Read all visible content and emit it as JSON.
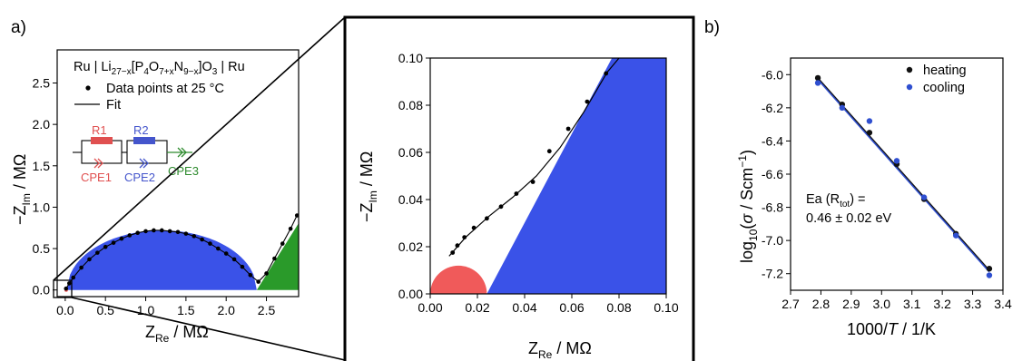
{
  "panel_labels": {
    "a": "a)",
    "b": "b)"
  },
  "chart_data": [
    {
      "id": "main",
      "type": "scatter",
      "legend_position": "top",
      "legend": {
        "cell_prefix": "Ru | Li",
        "sub1": "27−x",
        "mid1": "[P",
        "sub2": "4",
        "mid2": "O",
        "sub3": "7+x",
        "mid3": "N",
        "sub4": "9−x",
        "mid4": "]O",
        "sub5": "3",
        "cell_suffix": " | Ru",
        "points_label": "Data points at 25 °C",
        "fit_label": "Fit"
      },
      "circuit": {
        "r1": "R1",
        "r2": "R2",
        "cpe1": "CPE1",
        "cpe2": "CPE2",
        "cpe3": "CPE3",
        "colors": {
          "r1": "#e05050",
          "r2": "#4455cc",
          "cpe3": "#2e8b2e"
        }
      },
      "xlabel": {
        "main": "Z",
        "sub": "Re",
        "unit": " / MΩ"
      },
      "ylabel": {
        "main": "−Z",
        "sub": "Im",
        "unit": " / MΩ"
      },
      "xlim": [
        -0.1,
        2.9
      ],
      "ylim": [
        -0.08,
        2.9
      ],
      "x_ticks": [
        "0.0",
        "0.5",
        "1.0",
        "1.5",
        "2.0",
        "2.5"
      ],
      "x_tick_values": [
        0,
        0.5,
        1.0,
        1.5,
        2.0,
        2.5
      ],
      "y_ticks": [
        "0.0",
        "0.5",
        "1.0",
        "1.5",
        "2.0",
        "2.5"
      ],
      "y_tick_values": [
        0,
        0.5,
        1.0,
        1.5,
        2.0,
        2.5
      ],
      "regions": [
        {
          "name": "R1 arc",
          "color": "#f05a5a",
          "center": 0.012,
          "radius": 0.012
        },
        {
          "name": "R2 arc",
          "color": "#3a52e8",
          "x_start": 0.02,
          "x_end": 2.38,
          "peak": 0.72
        },
        {
          "name": "CPE3 spur",
          "color": "#2a9a2a",
          "x_start": 2.38,
          "x_end": 2.9,
          "slope": 1.55
        }
      ],
      "points": [
        {
          "x": 0.01,
          "y": 0.017
        },
        {
          "x": 0.05,
          "y": 0.08
        },
        {
          "x": 0.1,
          "y": 0.15
        },
        {
          "x": 0.2,
          "y": 0.27
        },
        {
          "x": 0.3,
          "y": 0.37
        },
        {
          "x": 0.4,
          "y": 0.45
        },
        {
          "x": 0.5,
          "y": 0.52
        },
        {
          "x": 0.6,
          "y": 0.57
        },
        {
          "x": 0.7,
          "y": 0.62
        },
        {
          "x": 0.8,
          "y": 0.66
        },
        {
          "x": 0.9,
          "y": 0.69
        },
        {
          "x": 1.0,
          "y": 0.71
        },
        {
          "x": 1.1,
          "y": 0.72
        },
        {
          "x": 1.2,
          "y": 0.72
        },
        {
          "x": 1.3,
          "y": 0.71
        },
        {
          "x": 1.4,
          "y": 0.7
        },
        {
          "x": 1.5,
          "y": 0.68
        },
        {
          "x": 1.6,
          "y": 0.65
        },
        {
          "x": 1.7,
          "y": 0.61
        },
        {
          "x": 1.8,
          "y": 0.56
        },
        {
          "x": 1.9,
          "y": 0.5
        },
        {
          "x": 2.0,
          "y": 0.44
        },
        {
          "x": 2.1,
          "y": 0.37
        },
        {
          "x": 2.2,
          "y": 0.28
        },
        {
          "x": 2.3,
          "y": 0.18
        },
        {
          "x": 2.4,
          "y": 0.1
        },
        {
          "x": 2.5,
          "y": 0.2
        },
        {
          "x": 2.6,
          "y": 0.38
        },
        {
          "x": 2.7,
          "y": 0.56
        },
        {
          "x": 2.8,
          "y": 0.74
        },
        {
          "x": 2.88,
          "y": 0.9
        }
      ],
      "fit_description": "Fit"
    },
    {
      "id": "inset",
      "type": "scatter",
      "xlabel": {
        "main": "Z",
        "sub": "Re",
        "unit": " / MΩ"
      },
      "ylabel": {
        "main": "−Z",
        "sub": "Im",
        "unit": " / MΩ"
      },
      "xlim": [
        0,
        0.1
      ],
      "ylim": [
        0,
        0.1
      ],
      "x_ticks": [
        "0.00",
        "0.02",
        "0.04",
        "0.06",
        "0.08",
        "0.10"
      ],
      "x_tick_values": [
        0,
        0.02,
        0.04,
        0.06,
        0.08,
        0.1
      ],
      "y_ticks": [
        "0.00",
        "0.02",
        "0.04",
        "0.06",
        "0.08",
        "0.10"
      ],
      "y_tick_values": [
        0,
        0.02,
        0.04,
        0.06,
        0.08,
        0.1
      ],
      "red_arc": {
        "center": 0.012,
        "radius": 0.012,
        "color": "#f05a5a"
      },
      "blue_region": {
        "color": "#3a52e8",
        "bottom_x": 0.024,
        "top_x": 0.077
      },
      "points": [
        {
          "x": 0.0095,
          "y": 0.0175
        },
        {
          "x": 0.0115,
          "y": 0.0205
        },
        {
          "x": 0.0145,
          "y": 0.024
        },
        {
          "x": 0.0185,
          "y": 0.028
        },
        {
          "x": 0.024,
          "y": 0.032
        },
        {
          "x": 0.03,
          "y": 0.037
        },
        {
          "x": 0.0365,
          "y": 0.0425
        },
        {
          "x": 0.0435,
          "y": 0.0475
        },
        {
          "x": 0.0505,
          "y": 0.0605
        },
        {
          "x": 0.0585,
          "y": 0.07
        },
        {
          "x": 0.0665,
          "y": 0.0815
        },
        {
          "x": 0.0745,
          "y": 0.0935
        }
      ],
      "fit": [
        {
          "x": 0.008,
          "y": 0.016
        },
        {
          "x": 0.015,
          "y": 0.024
        },
        {
          "x": 0.025,
          "y": 0.033
        },
        {
          "x": 0.035,
          "y": 0.041
        },
        {
          "x": 0.045,
          "y": 0.05
        },
        {
          "x": 0.055,
          "y": 0.062
        },
        {
          "x": 0.065,
          "y": 0.077
        },
        {
          "x": 0.075,
          "y": 0.094
        },
        {
          "x": 0.08,
          "y": 0.1
        }
      ]
    },
    {
      "id": "arrhenius",
      "type": "scatter",
      "xlabel": {
        "pre": "1000/",
        "italic": "T",
        "post": " / 1/K"
      },
      "ylabel": {
        "pre": "log",
        "sub": "10",
        "open": "(",
        "italic": "σ",
        "post": " / Scm",
        "sup": "−1",
        "close": ")"
      },
      "xlim": [
        2.7,
        3.4
      ],
      "ylim": [
        -7.3,
        -5.9
      ],
      "x_ticks": [
        "2.7",
        "2.8",
        "2.9",
        "3.0",
        "3.1",
        "3.2",
        "3.3",
        "3.4"
      ],
      "x_tick_values": [
        2.7,
        2.8,
        2.9,
        3.0,
        3.1,
        3.2,
        3.3,
        3.4
      ],
      "y_ticks": [
        "-6.0",
        "-6.2",
        "-6.4",
        "-6.6",
        "-6.8",
        "-7.0",
        "-7.2"
      ],
      "y_tick_values": [
        -6.0,
        -6.2,
        -6.4,
        -6.6,
        -6.8,
        -7.0,
        -7.2
      ],
      "annotation": {
        "line1": "Ea (R",
        "sub": "tot",
        "line1_end": ") =",
        "line2": "0.46 ± 0.02 eV"
      },
      "series": [
        {
          "name": "heating",
          "color": "#111111",
          "x": [
            2.79,
            2.87,
            2.96,
            3.05,
            3.14,
            3.245,
            3.355
          ],
          "y": [
            -6.02,
            -6.18,
            -6.35,
            -6.54,
            -6.75,
            -6.96,
            -7.17
          ]
        },
        {
          "name": "cooling",
          "color": "#2f4fd0",
          "x": [
            2.79,
            2.87,
            2.96,
            3.05,
            3.14,
            3.245,
            3.355
          ],
          "y": [
            -6.05,
            -6.2,
            -6.28,
            -6.52,
            -6.74,
            -6.97,
            -7.21
          ]
        }
      ],
      "fits": [
        {
          "color": "#111111",
          "x": [
            2.79,
            3.355
          ],
          "y": [
            -6.02,
            -7.18
          ]
        },
        {
          "color": "#2f4fd0",
          "x": [
            2.79,
            3.355
          ],
          "y": [
            -6.03,
            -7.19
          ]
        }
      ]
    }
  ]
}
